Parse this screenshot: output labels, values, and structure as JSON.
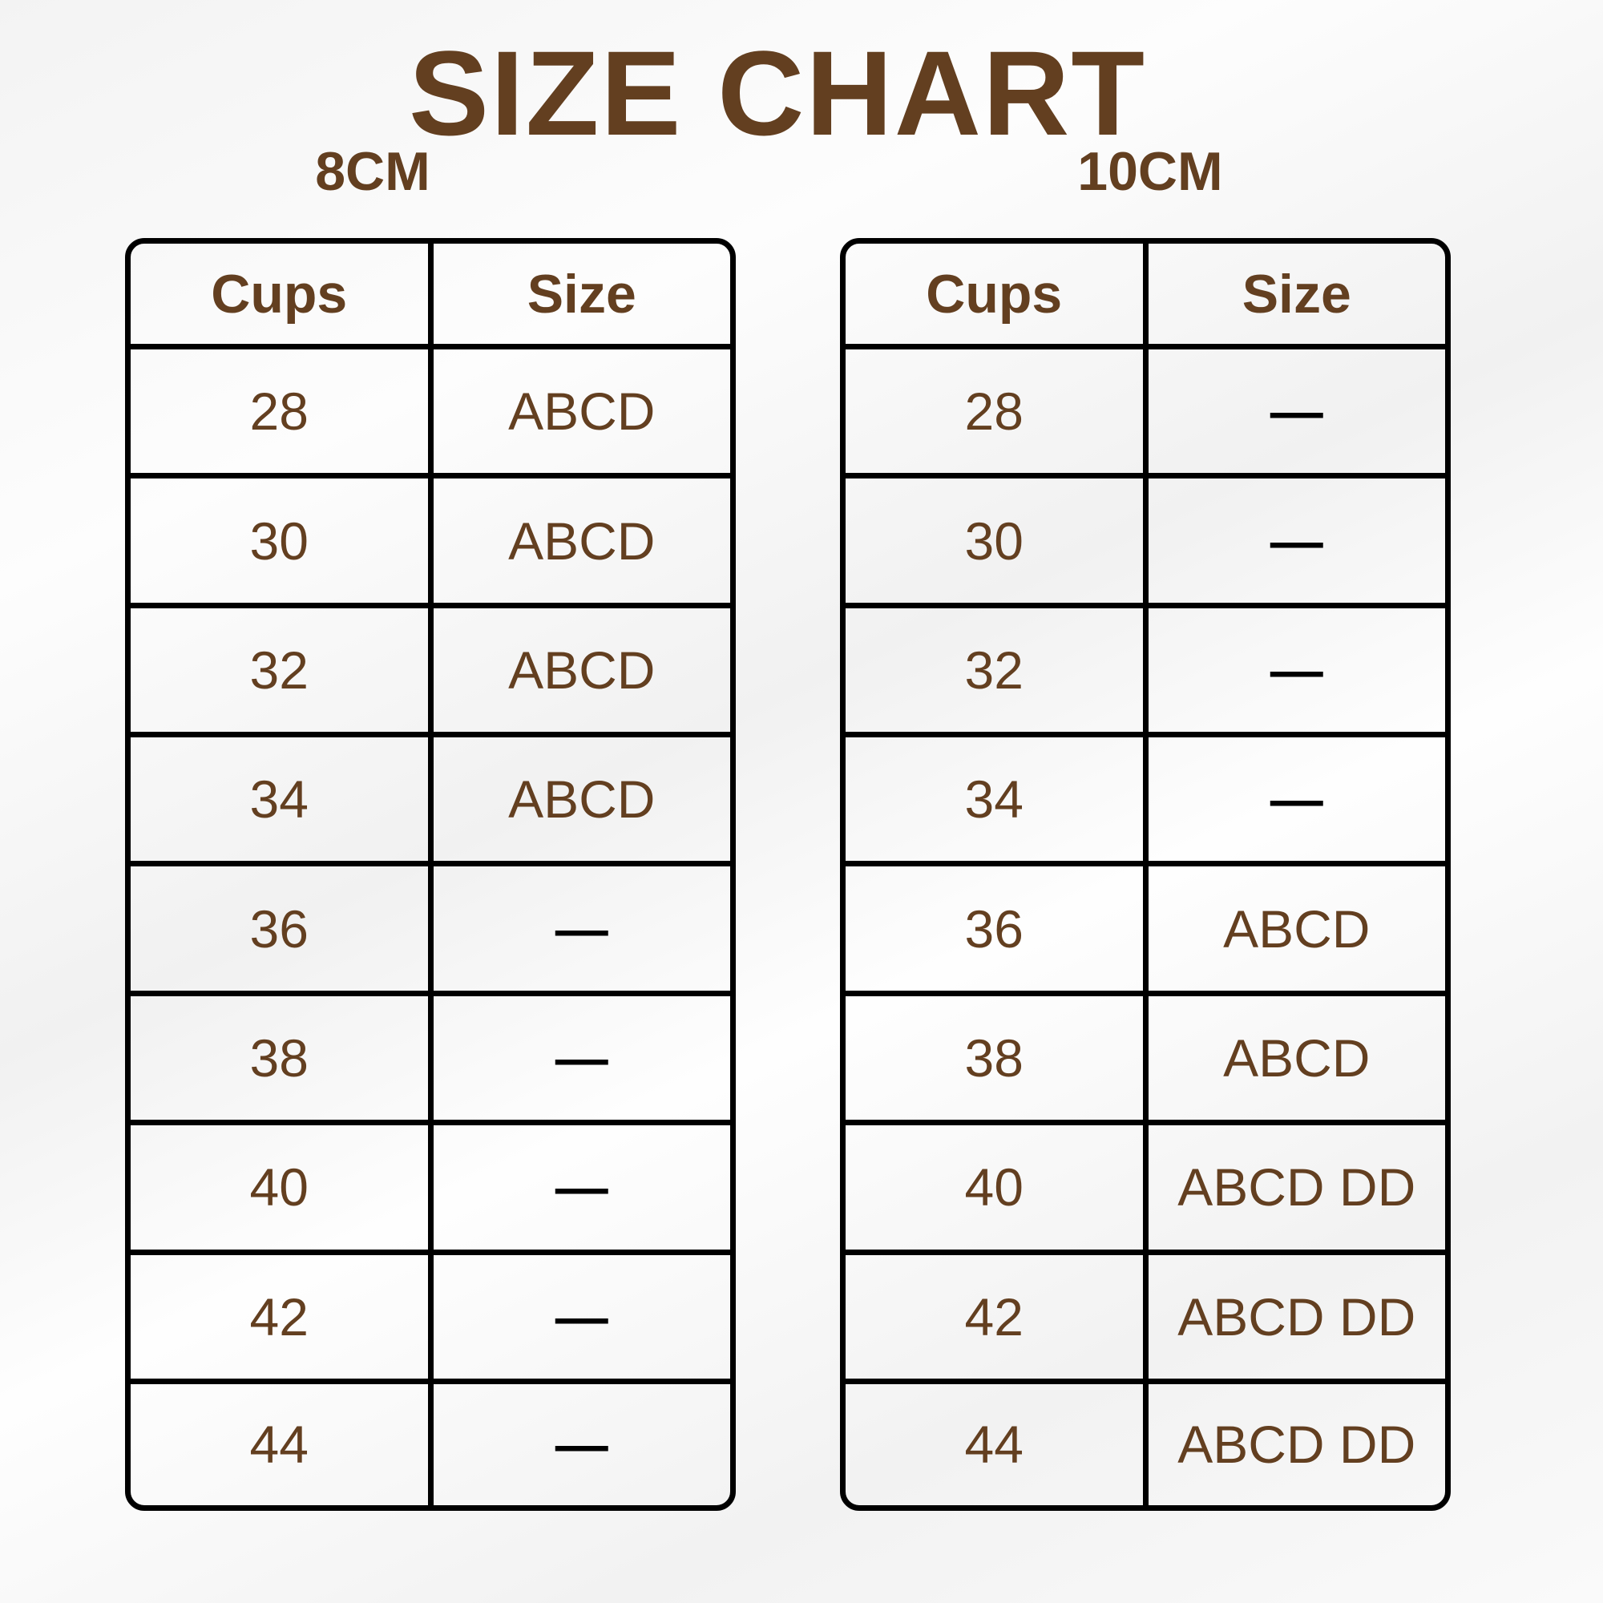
{
  "title": "SIZE CHART",
  "colors": {
    "text": "#633f20",
    "lines": "#000000"
  },
  "tables": [
    {
      "label": "8CM",
      "headers": [
        "Cups",
        "Size"
      ],
      "rows": [
        [
          "28",
          "ABCD"
        ],
        [
          "30",
          "ABCD"
        ],
        [
          "32",
          "ABCD"
        ],
        [
          "34",
          "ABCD"
        ],
        [
          "36",
          "—"
        ],
        [
          "38",
          "—"
        ],
        [
          "40",
          "—"
        ],
        [
          "42",
          "—"
        ],
        [
          "44",
          "—"
        ]
      ]
    },
    {
      "label": "10CM",
      "headers": [
        "Cups",
        "Size"
      ],
      "rows": [
        [
          "28",
          "—"
        ],
        [
          "30",
          "—"
        ],
        [
          "32",
          "—"
        ],
        [
          "34",
          "—"
        ],
        [
          "36",
          "ABCD"
        ],
        [
          "38",
          "ABCD"
        ],
        [
          "40",
          "ABCD DD"
        ],
        [
          "42",
          "ABCD DD"
        ],
        [
          "44",
          "ABCD DD"
        ]
      ]
    }
  ]
}
